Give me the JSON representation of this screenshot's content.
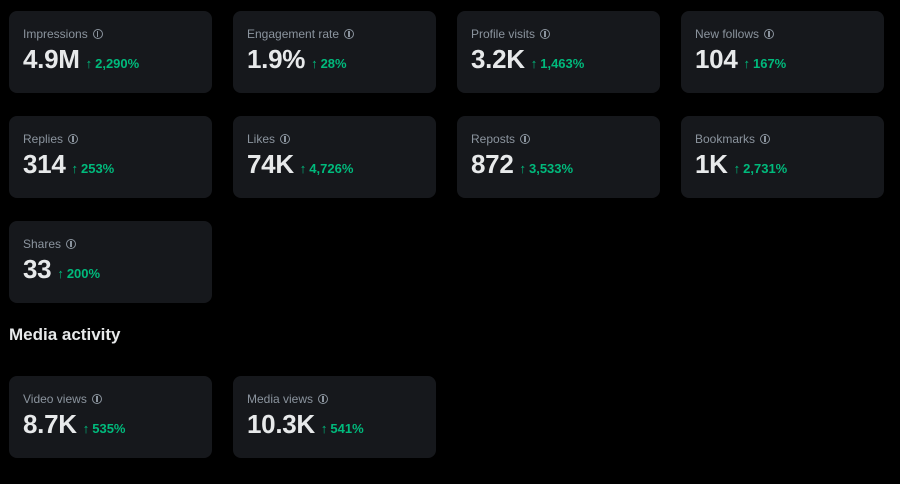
{
  "metrics": [
    {
      "label": "Impressions",
      "value": "4.9M",
      "change": "2,290%"
    },
    {
      "label": "Engagement rate",
      "value": "1.9%",
      "change": "28%"
    },
    {
      "label": "Profile visits",
      "value": "3.2K",
      "change": "1,463%"
    },
    {
      "label": "New follows",
      "value": "104",
      "change": "167%"
    },
    {
      "label": "Replies",
      "value": "314",
      "change": "253%"
    },
    {
      "label": "Likes",
      "value": "74K",
      "change": "4,726%"
    },
    {
      "label": "Reposts",
      "value": "872",
      "change": "3,533%"
    },
    {
      "label": "Bookmarks",
      "value": "1K",
      "change": "2,731%"
    },
    {
      "label": "Shares",
      "value": "33",
      "change": "200%"
    }
  ],
  "media_section": {
    "title": "Media activity",
    "metrics": [
      {
        "label": "Video views",
        "value": "8.7K",
        "change": "535%"
      },
      {
        "label": "Media views",
        "value": "10.3K",
        "change": "541%"
      }
    ]
  },
  "icons": {
    "info": "info-circle-icon",
    "trend": "arrow-up-icon",
    "arrow_glyph": "↑"
  },
  "colors": {
    "background": "#000000",
    "card": "#16181c",
    "positive": "#00ba7c",
    "muted": "#8b949e"
  }
}
